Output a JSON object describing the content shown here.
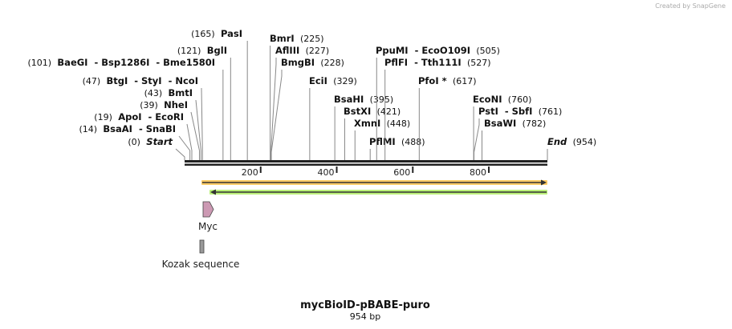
{
  "credit": "Created by SnapGene",
  "map": {
    "title": "mycBioID-pBABE-puro",
    "length_label": "954 bp",
    "length": 954,
    "ticks": [
      "200",
      "400",
      "600",
      "800"
    ],
    "sites": [
      {
        "pos": "(0)",
        "name": "Start",
        "bp": 0,
        "side": "left",
        "italic": true
      },
      {
        "pos": "(14)",
        "name": "BsaAI  - SnaBI",
        "bp": 14,
        "side": "left"
      },
      {
        "pos": "(19)",
        "name": "ApoI  - EcoRI",
        "bp": 19,
        "side": "left"
      },
      {
        "pos": "(39)",
        "name": "NheI",
        "bp": 39,
        "side": "left"
      },
      {
        "pos": "(43)",
        "name": "BmtI",
        "bp": 43,
        "side": "left"
      },
      {
        "pos": "(47)",
        "name": "BtgI  - StyI  - NcoI",
        "bp": 47,
        "side": "left"
      },
      {
        "pos": "(101)",
        "name": "BaeGI  - Bsp1286I  - Bme1580I",
        "bp": 101,
        "side": "left"
      },
      {
        "pos": "(121)",
        "name": "BglI",
        "bp": 121,
        "side": "left"
      },
      {
        "pos": "(165)",
        "name": "PasI",
        "bp": 165,
        "side": "left"
      },
      {
        "pos": "(225)",
        "name": "BmrI",
        "bp": 225,
        "side": "right"
      },
      {
        "pos": "(227)",
        "name": "AflIII",
        "bp": 227,
        "side": "right"
      },
      {
        "pos": "(228)",
        "name": "BmgBI",
        "bp": 228,
        "side": "right"
      },
      {
        "pos": "(329)",
        "name": "EciI",
        "bp": 329,
        "side": "right"
      },
      {
        "pos": "(395)",
        "name": "BsaHI",
        "bp": 395,
        "side": "right"
      },
      {
        "pos": "(421)",
        "name": "BstXI",
        "bp": 421,
        "side": "right"
      },
      {
        "pos": "(448)",
        "name": "XmnI",
        "bp": 448,
        "side": "right"
      },
      {
        "pos": "(488)",
        "name": "PflMI",
        "bp": 488,
        "side": "right"
      },
      {
        "pos": "(505)",
        "name": "PpuMI  - EcoO109I",
        "bp": 505,
        "side": "right"
      },
      {
        "pos": "(527)",
        "name": "PflFI  - Tth111I",
        "bp": 527,
        "side": "right"
      },
      {
        "pos": "(617)",
        "name": "PfoI *",
        "bp": 617,
        "side": "right"
      },
      {
        "pos": "(760)",
        "name": "EcoNI",
        "bp": 760,
        "side": "right"
      },
      {
        "pos": "(761)",
        "name": "PstI  - SbfI",
        "bp": 761,
        "side": "right"
      },
      {
        "pos": "(782)",
        "name": "BsaWI",
        "bp": 782,
        "side": "right"
      },
      {
        "pos": "(954)",
        "name": "End",
        "bp": 954,
        "side": "right",
        "italic": true
      }
    ],
    "features": [
      {
        "name": "Myc",
        "color": "#cc99b3"
      },
      {
        "name": "Kozak sequence",
        "color": "#999999"
      }
    ],
    "primer_colors": {
      "forward": "#ffcc66",
      "reverse": "#bbf07a"
    }
  }
}
